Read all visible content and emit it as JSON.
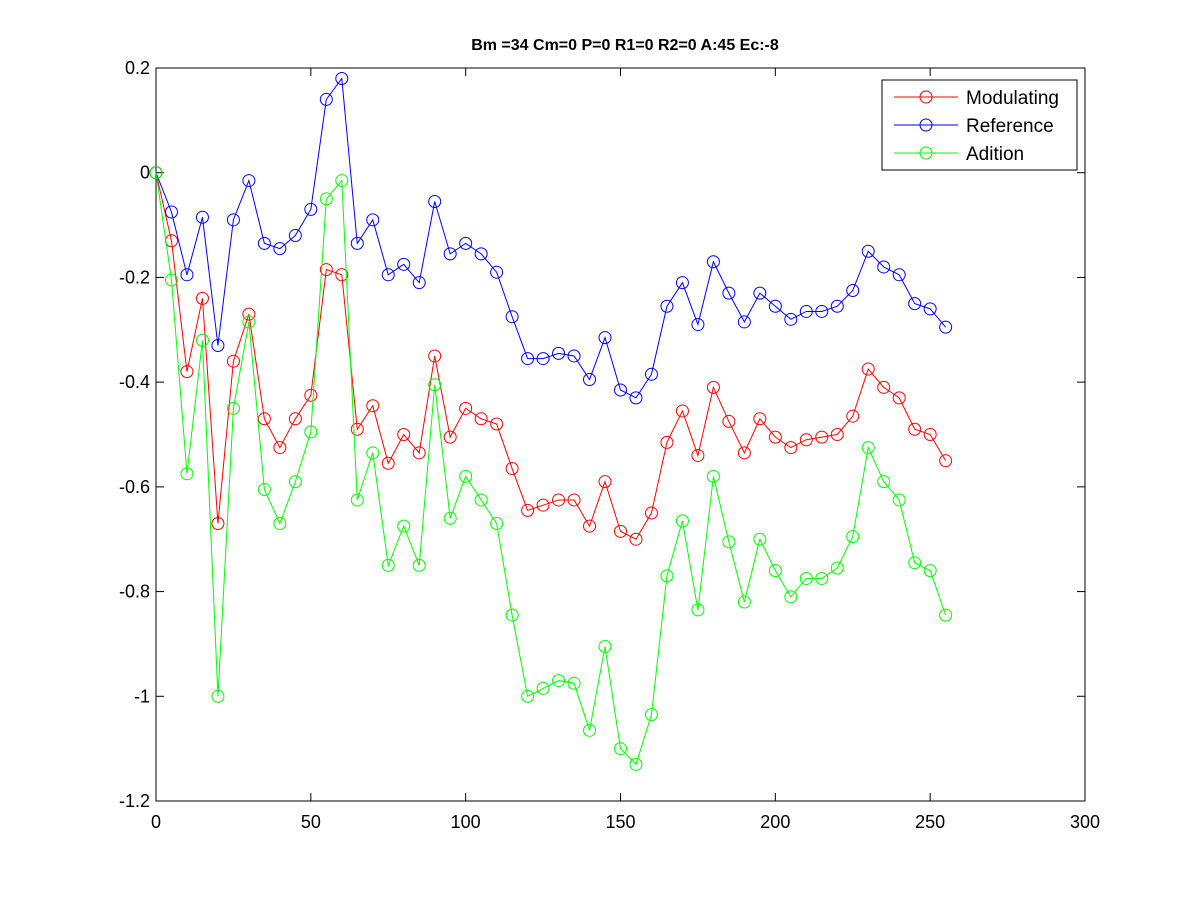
{
  "chart_data": {
    "type": "line",
    "title": "Bm =34  Cm=0  P=0  R1=0  R2=0  A:45  Ec:-8",
    "xlabel": "",
    "ylabel": "",
    "xlim": [
      0,
      300
    ],
    "ylim": [
      -1.2,
      0.2
    ],
    "xticks": [
      0,
      50,
      100,
      150,
      200,
      250,
      300
    ],
    "xtick_labels": [
      "0",
      "50",
      "100",
      "150",
      "200",
      "250",
      "300"
    ],
    "yticks": [
      0.2,
      0,
      -0.2,
      -0.4,
      -0.6,
      -0.8,
      -1,
      -1.2
    ],
    "ytick_labels": [
      "0.2",
      "0",
      "-0.2",
      "-0.4",
      "-0.6",
      "-0.8",
      "-1",
      "-1.2"
    ],
    "grid": false,
    "legend_position": "top-right",
    "marker": "circle",
    "x": [
      0,
      5,
      10,
      15,
      20,
      25,
      30,
      35,
      40,
      45,
      50,
      55,
      60,
      65,
      70,
      75,
      80,
      85,
      90,
      95,
      100,
      105,
      110,
      115,
      120,
      125,
      130,
      135,
      140,
      145,
      150,
      155,
      160,
      165,
      170,
      175,
      180,
      185,
      190,
      195,
      200,
      205,
      210,
      215,
      220,
      225,
      230,
      235,
      240,
      245,
      250,
      255
    ],
    "series": [
      {
        "name": "Modulating",
        "color": "#ff0000",
        "values": [
          0,
          -0.13,
          -0.38,
          -0.24,
          -0.67,
          -0.36,
          -0.27,
          -0.47,
          -0.525,
          -0.47,
          -0.425,
          -0.185,
          -0.195,
          -0.49,
          -0.445,
          -0.555,
          -0.5,
          -0.535,
          -0.35,
          -0.505,
          -0.45,
          -0.47,
          -0.48,
          -0.565,
          -0.645,
          -0.635,
          -0.625,
          -0.625,
          -0.675,
          -0.59,
          -0.685,
          -0.7,
          -0.65,
          -0.515,
          -0.455,
          -0.54,
          -0.41,
          -0.475,
          -0.535,
          -0.47,
          -0.505,
          -0.525,
          -0.51,
          -0.505,
          -0.5,
          -0.465,
          -0.375,
          -0.41,
          -0.43,
          -0.49,
          -0.5,
          -0.55
        ]
      },
      {
        "name": "Reference",
        "color": "#0000ff",
        "values": [
          0,
          -0.075,
          -0.195,
          -0.085,
          -0.33,
          -0.09,
          -0.015,
          -0.135,
          -0.145,
          -0.12,
          -0.07,
          0.14,
          0.18,
          -0.135,
          -0.09,
          -0.195,
          -0.175,
          -0.21,
          -0.055,
          -0.155,
          -0.135,
          -0.155,
          -0.19,
          -0.275,
          -0.355,
          -0.355,
          -0.345,
          -0.35,
          -0.395,
          -0.315,
          -0.415,
          -0.43,
          -0.385,
          -0.255,
          -0.21,
          -0.29,
          -0.17,
          -0.23,
          -0.285,
          -0.23,
          -0.255,
          -0.28,
          -0.265,
          -0.265,
          -0.255,
          -0.225,
          -0.15,
          -0.18,
          -0.195,
          -0.25,
          -0.26,
          -0.295
        ]
      },
      {
        "name": "Adition",
        "color": "#00ff00",
        "values": [
          0,
          -0.205,
          -0.575,
          -0.32,
          -1.0,
          -0.45,
          -0.285,
          -0.605,
          -0.67,
          -0.59,
          -0.495,
          -0.05,
          -0.015,
          -0.625,
          -0.535,
          -0.75,
          -0.675,
          -0.75,
          -0.405,
          -0.66,
          -0.58,
          -0.625,
          -0.67,
          -0.845,
          -1.0,
          -0.985,
          -0.97,
          -0.975,
          -1.065,
          -0.905,
          -1.1,
          -1.13,
          -1.035,
          -0.77,
          -0.665,
          -0.835,
          -0.58,
          -0.705,
          -0.82,
          -0.7,
          -0.76,
          -0.81,
          -0.775,
          -0.775,
          -0.755,
          -0.695,
          -0.525,
          -0.59,
          -0.625,
          -0.745,
          -0.76,
          -0.845
        ]
      }
    ]
  }
}
